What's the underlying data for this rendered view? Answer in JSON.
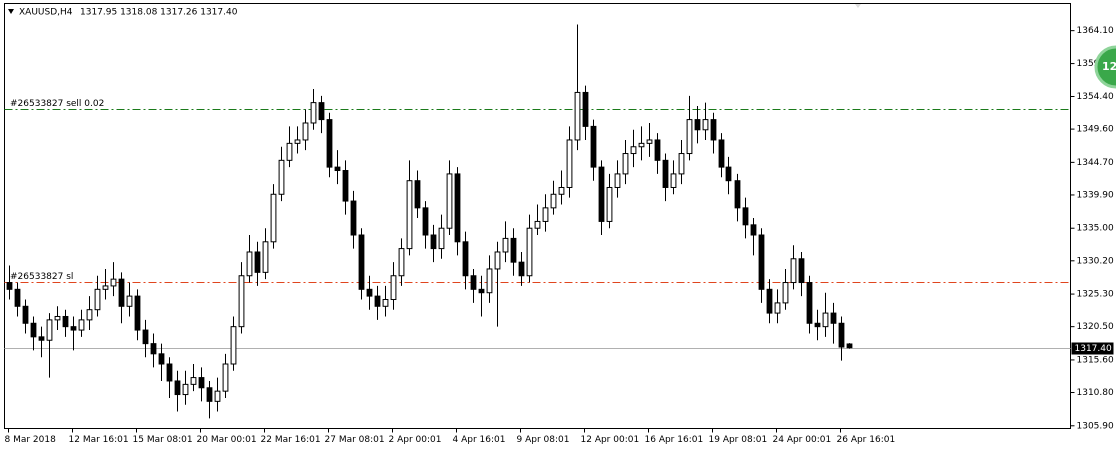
{
  "chart_data": {
    "type": "candlestick",
    "title": "XAUUSD,H4",
    "subtitle": "1317.95 1318.08 1317.26 1317.40",
    "bull_color": "#ffffff",
    "bear_color": "#000000",
    "ylim": [
      1305.5,
      1368.1
    ],
    "yticks": [
      {
        "value": 1364.1,
        "label": "1364.10"
      },
      {
        "value": 1359.25,
        "label": "1359.25"
      },
      {
        "value": 1354.4,
        "label": "1354.40"
      },
      {
        "value": 1349.6,
        "label": "1349.60"
      },
      {
        "value": 1344.7,
        "label": "1344.70"
      },
      {
        "value": 1339.9,
        "label": "1339.90"
      },
      {
        "value": 1335,
        "label": "1335.00"
      },
      {
        "value": 1330.2,
        "label": "1330.20"
      },
      {
        "value": 1325.3,
        "label": "1325.30"
      },
      {
        "value": 1320.5,
        "label": "1320.50"
      },
      {
        "value": 1315.6,
        "label": "1315.60"
      },
      {
        "value": 1310.8,
        "label": "1310.80"
      },
      {
        "value": 1305.9,
        "label": "1305.90"
      }
    ],
    "xlim": [
      -0.5,
      132.75
    ],
    "xticks": [
      {
        "value": 0,
        "label": "8 Mar 2018"
      },
      {
        "value": 8,
        "label": "12 Mar 16:01"
      },
      {
        "value": 16,
        "label": "15 Mar 08:01"
      },
      {
        "value": 24,
        "label": "20 Mar 00:01"
      },
      {
        "value": 32,
        "label": "22 Mar 16:01"
      },
      {
        "value": 40,
        "label": "27 Mar 08:01"
      },
      {
        "value": 48,
        "label": "2 Apr 00:01"
      },
      {
        "value": 56,
        "label": "4 Apr 16:01"
      },
      {
        "value": 64,
        "label": "9 Apr 08:01"
      },
      {
        "value": 72,
        "label": "12 Apr 00:01"
      },
      {
        "value": 80,
        "label": "16 Apr 16:01"
      },
      {
        "value": 88,
        "label": "19 Apr 08:01"
      },
      {
        "value": 96,
        "label": "24 Apr 00:01"
      },
      {
        "value": 104,
        "label": "26 Apr 16:01"
      }
    ],
    "open": [
      1327,
      1326,
      1323.5,
      1321,
      1319,
      1318.5,
      1321.5,
      1322,
      1320.5,
      1320,
      1321.5,
      1323,
      1326,
      1326.5,
      1327.5,
      1323.5,
      1325,
      1320,
      1318,
      1316.5,
      1315,
      1312.5,
      1310.5,
      1312,
      1313,
      1311.5,
      1309.5,
      1311,
      1315,
      1320.5,
      1328,
      1331.5,
      1328.5,
      1333,
      1340,
      1345,
      1347.5,
      1348,
      1350.5,
      1353.5,
      1351,
      1344,
      1343.5,
      1339,
      1334,
      1326,
      1325,
      1323.5,
      1324.5,
      1328,
      1332,
      1342,
      1338,
      1334,
      1332,
      1335,
      1343,
      1333,
      1328,
      1326,
      1325.5,
      1329,
      1331.5,
      1333.5,
      1330,
      1328,
      1335,
      1336,
      1338,
      1340,
      1341,
      1348,
      1355,
      1350,
      1344,
      1336,
      1341,
      1343,
      1346,
      1347,
      1347.5,
      1348,
      1345,
      1341,
      1343,
      1346,
      1351,
      1349.5,
      1351,
      1348,
      1344,
      1342,
      1338,
      1335.5,
      1334,
      1326,
      1322.5,
      1324,
      1327,
      1330.5,
      1327,
      1321,
      1320.5,
      1322.5,
      1321,
      1317.95
    ],
    "high": [
      1329.5,
      1327,
      1324.5,
      1322,
      1320.5,
      1322.5,
      1323.5,
      1323,
      1322,
      1323,
      1325,
      1328,
      1329,
      1330,
      1328.5,
      1327,
      1326,
      1321.5,
      1319.5,
      1318,
      1316,
      1314,
      1314,
      1315,
      1314.5,
      1312.5,
      1313,
      1316.5,
      1322,
      1330,
      1334,
      1333,
      1335,
      1341.5,
      1347,
      1350,
      1350,
      1352.5,
      1355.5,
      1354.5,
      1352,
      1346.5,
      1345,
      1340.5,
      1335,
      1328,
      1326.5,
      1326.5,
      1330,
      1333.5,
      1345,
      1343.5,
      1339,
      1335.5,
      1337,
      1345,
      1344,
      1334.5,
      1329,
      1328,
      1331,
      1333,
      1336,
      1335,
      1331.5,
      1337,
      1338.5,
      1340,
      1342,
      1343.5,
      1350,
      1365,
      1356,
      1351,
      1345,
      1343,
      1345,
      1348,
      1349.5,
      1350,
      1350.5,
      1349,
      1346,
      1345,
      1348,
      1354.5,
      1353,
      1353.5,
      1352,
      1349,
      1345.5,
      1343,
      1339.5,
      1336.5,
      1335,
      1327.5,
      1326,
      1329,
      1332.5,
      1331.5,
      1328,
      1323,
      1325.5,
      1324,
      1322,
      1318.08
    ],
    "low": [
      1324.5,
      1322,
      1319.5,
      1317,
      1316,
      1313,
      1320,
      1319,
      1317,
      1319,
      1320,
      1322,
      1324.5,
      1325,
      1321,
      1322,
      1318.5,
      1316,
      1314.5,
      1312.5,
      1310,
      1308,
      1309,
      1311,
      1309.5,
      1307,
      1308,
      1310,
      1314,
      1319.5,
      1327,
      1326.5,
      1327.5,
      1332,
      1339,
      1344,
      1346,
      1346.5,
      1349.5,
      1349,
      1342.5,
      1341.5,
      1337,
      1332,
      1324.5,
      1323,
      1321.5,
      1322,
      1323,
      1326.5,
      1331,
      1336.5,
      1332,
      1330,
      1330.5,
      1334,
      1331,
      1326,
      1324,
      1322,
      1324,
      1320.5,
      1330,
      1328,
      1326.5,
      1327,
      1334,
      1334.5,
      1337,
      1338.5,
      1339.5,
      1346.5,
      1348,
      1342,
      1334,
      1335,
      1339.5,
      1341.5,
      1344,
      1345,
      1345.5,
      1343,
      1339,
      1340,
      1341.5,
      1345,
      1347.5,
      1348,
      1346,
      1342.5,
      1340,
      1336,
      1333.5,
      1331,
      1324,
      1321,
      1321,
      1323,
      1326,
      1325,
      1319.5,
      1318.5,
      1319,
      1318,
      1315.5,
      1317.26
    ],
    "close": [
      1326,
      1323.5,
      1321,
      1319,
      1318.5,
      1321.5,
      1322,
      1320.5,
      1320,
      1321.5,
      1323,
      1326,
      1326.5,
      1327.5,
      1323.5,
      1325,
      1320,
      1318,
      1316.5,
      1315,
      1312.5,
      1310.5,
      1312,
      1313,
      1311.5,
      1309.5,
      1311,
      1315,
      1320.5,
      1328,
      1331.5,
      1328.5,
      1333,
      1340,
      1345,
      1347.5,
      1348,
      1350.5,
      1353.5,
      1351,
      1344,
      1343.5,
      1339,
      1334,
      1326,
      1325,
      1323.5,
      1324.5,
      1328,
      1332,
      1342,
      1338,
      1334,
      1332,
      1335,
      1343,
      1333,
      1328,
      1326,
      1325.5,
      1329,
      1331.5,
      1333.5,
      1330,
      1328,
      1335,
      1336,
      1338,
      1340,
      1341,
      1348,
      1355,
      1350,
      1344,
      1336,
      1341,
      1343,
      1346,
      1347,
      1347.5,
      1348,
      1345,
      1341,
      1343,
      1346,
      1351,
      1349.5,
      1351,
      1348,
      1344,
      1342,
      1338,
      1335.5,
      1334,
      1326,
      1322.5,
      1324,
      1327,
      1330.5,
      1327,
      1321,
      1320.5,
      1322.5,
      1321,
      1317.5,
      1317.4
    ],
    "levels": [
      {
        "name": "#26533827 sell 0.02",
        "value": 1352.55,
        "color": "#1a7a1a"
      },
      {
        "name": "#26533827 sl",
        "value": 1327.08,
        "color": "#e0451e"
      }
    ],
    "price_line": {
      "value": 1317.4,
      "label": "1317.40",
      "color": "#b0b0b0"
    },
    "badge": "12"
  }
}
